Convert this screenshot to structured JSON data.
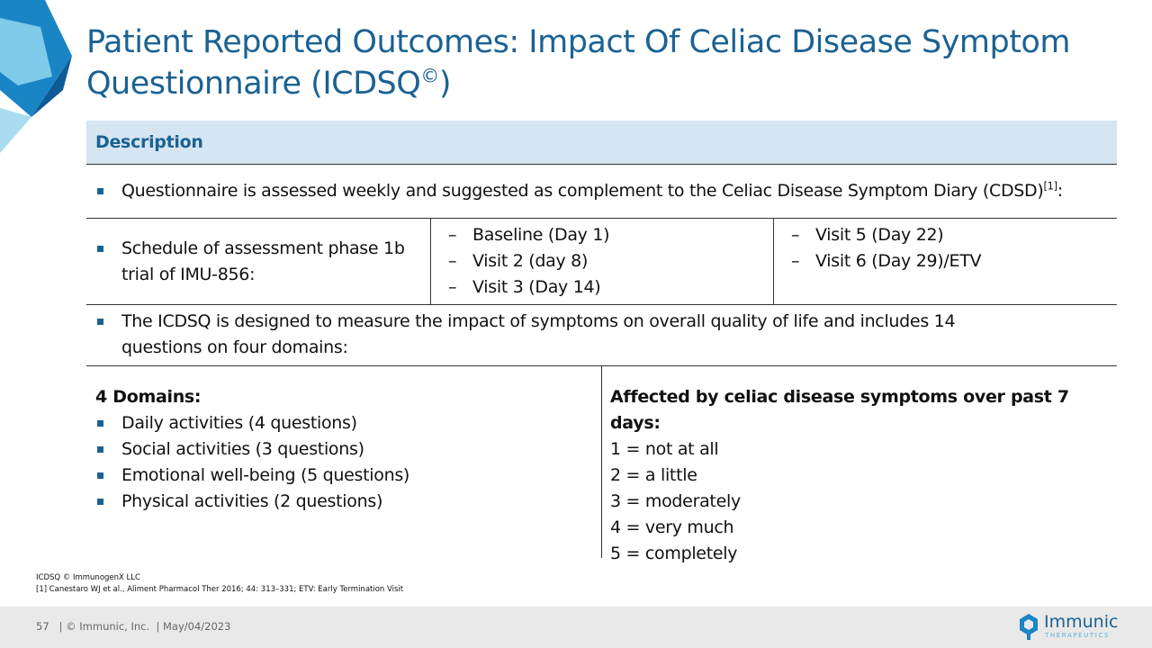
{
  "header": {
    "title": "Patient Reported Outcomes: Impact Of Celiac Disease Symptom Questionnaire (ICDSQ",
    "title_superscript": "©",
    "title_end": ")"
  },
  "table": {
    "header": "Description",
    "row1": {
      "text": "Questionnaire is assessed weekly and suggested as complement to the Celiac Disease Symptom Diary (CDSD)",
      "superscript": "[1]",
      "end": ":"
    },
    "row2": {
      "label": "Schedule of assessment phase 1b trial of IMU-856:",
      "visits_a": [
        "Baseline (Day 1)",
        "Visit 2 (day 8)",
        "Visit 3 (Day 14)"
      ],
      "visits_b": [
        "Visit 5 (Day 22)",
        "Visit 6 (Day 29)/ETV"
      ]
    },
    "row3": "The ICDSQ is designed to measure the impact of symptoms on overall quality of life and includes 14 questions on four domains:",
    "row4": {
      "domains_title": "4 Domains:",
      "domains": [
        "Daily activities (4 questions)",
        "Social activities (3 questions)",
        "Emotional well-being (5 questions)",
        "Physical activities (2 questions)"
      ],
      "scale_title": "Affected by celiac disease symptoms over past 7 days:",
      "scale": [
        "1 = not at all",
        "2 = a little",
        "3 = moderately",
        "4 = very much",
        "5 = completely"
      ]
    }
  },
  "footnotes": [
    "ICDSQ © ImmunogenX LLC",
    "[1] Canestaro WJ et al., Aliment Pharmacol Ther 2016; 44: 313–331; ETV: Early Termination Visit"
  ],
  "footer": {
    "page": "57",
    "copyright": "| © Immunic, Inc.",
    "date": "| May/04/2023"
  },
  "logo": {
    "name": "Immunic",
    "tagline": "THERAPEUTICS"
  }
}
